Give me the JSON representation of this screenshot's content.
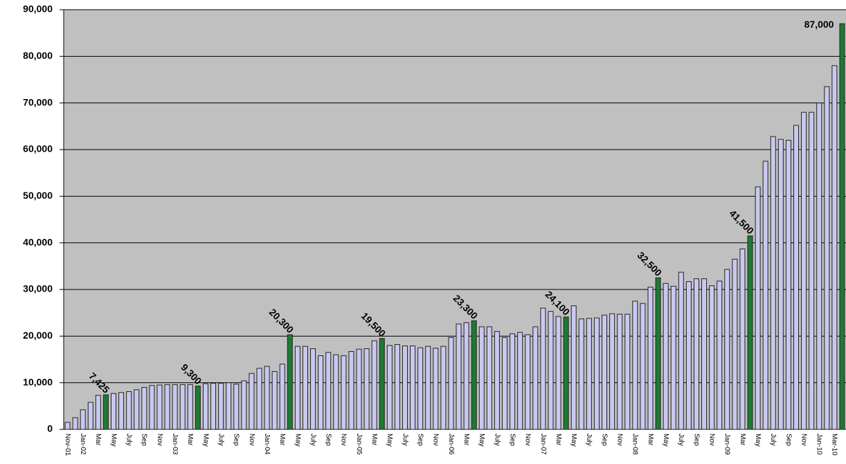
{
  "chart_data": {
    "type": "bar",
    "categories": [
      "Nov-01",
      null,
      "Jan-02",
      null,
      "Mar",
      null,
      "May",
      null,
      "July",
      null,
      "Sep",
      null,
      "Nov",
      null,
      "Jan-03",
      null,
      "Mar",
      null,
      "May",
      null,
      "July",
      null,
      "Sep",
      null,
      "Nov",
      null,
      "Jan-04",
      null,
      "Mar",
      null,
      "May",
      null,
      "July",
      null,
      "Sep",
      null,
      "Nov",
      null,
      "Jan-05",
      null,
      "Mar",
      null,
      "May",
      null,
      "July",
      null,
      "Sep",
      null,
      "Nov",
      null,
      "Jan-06",
      null,
      "Mar",
      null,
      "May",
      null,
      "July",
      null,
      "Sep",
      null,
      "Nov",
      null,
      "Jan-07",
      null,
      "Mar",
      null,
      "May",
      null,
      "July",
      null,
      "Sep",
      null,
      "Nov",
      null,
      "Jan-08",
      null,
      "Mar",
      null,
      "May",
      null,
      "July",
      null,
      "Sep",
      null,
      "Nov",
      null,
      "Jan-09",
      null,
      "Mar",
      null,
      "May",
      null,
      "July",
      null,
      "Sep",
      null,
      "Nov",
      null,
      "Jan-10",
      null,
      "Mar-10",
      null
    ],
    "values": [
      1500,
      2500,
      4200,
      5800,
      7300,
      7425,
      7700,
      7900,
      8100,
      8500,
      9000,
      9400,
      9500,
      9600,
      9600,
      9600,
      9600,
      9300,
      9800,
      9900,
      9900,
      10000,
      9700,
      10400,
      12000,
      13100,
      13500,
      12400,
      14000,
      20300,
      17800,
      17800,
      17300,
      15800,
      16500,
      16000,
      15800,
      16700,
      17200,
      17300,
      19000,
      19500,
      18000,
      18200,
      17900,
      17900,
      17500,
      17800,
      17400,
      17800,
      19700,
      22600,
      22900,
      23300,
      22000,
      22000,
      21000,
      19700,
      20500,
      20800,
      20300,
      22000,
      26000,
      25300,
      24200,
      24100,
      26500,
      23700,
      23800,
      23900,
      24500,
      24800,
      24700,
      24700,
      27500,
      27000,
      30500,
      32500,
      31300,
      30700,
      33700,
      31700,
      32300,
      32300,
      30800,
      31800,
      34300,
      36500,
      38700,
      41500,
      52000,
      57500,
      62800,
      62200,
      62000,
      65200,
      68000,
      68000,
      70000,
      73500,
      78000,
      87000
    ],
    "value_labels": [
      null,
      null,
      null,
      null,
      null,
      "7,425",
      null,
      null,
      null,
      null,
      null,
      null,
      null,
      null,
      null,
      null,
      null,
      "9,300",
      null,
      null,
      null,
      null,
      null,
      null,
      null,
      null,
      null,
      null,
      null,
      "20,300",
      null,
      null,
      null,
      null,
      null,
      null,
      null,
      null,
      null,
      null,
      null,
      "19,500",
      null,
      null,
      null,
      null,
      null,
      null,
      null,
      null,
      null,
      null,
      null,
      "23,300",
      null,
      null,
      null,
      null,
      null,
      null,
      null,
      null,
      null,
      null,
      null,
      "24,100",
      null,
      null,
      null,
      null,
      null,
      null,
      null,
      null,
      null,
      null,
      null,
      "32,500",
      null,
      null,
      null,
      null,
      null,
      null,
      null,
      null,
      null,
      null,
      null,
      "41,500",
      null,
      null,
      null,
      null,
      null,
      null,
      null,
      null,
      null,
      null,
      null,
      "87,000"
    ],
    "color": "#c8c8f0",
    "highlight_color": "#1e7a34",
    "ylim": [
      0,
      90000
    ],
    "yticks": [
      0,
      {
        "value": 10000,
        "label": "10,000"
      },
      {
        "value": 20000,
        "label": "20,000"
      },
      {
        "value": 30000,
        "label": "30,000"
      },
      {
        "value": 40000,
        "label": "40,000"
      },
      {
        "value": 50000,
        "label": "50,000"
      },
      {
        "value": 60000,
        "label": "60,000"
      },
      {
        "value": 70000,
        "label": "70,000"
      },
      {
        "value": 80000,
        "label": "80,000"
      },
      {
        "value": 90000,
        "label": "90,000"
      }
    ],
    "grid": true
  }
}
